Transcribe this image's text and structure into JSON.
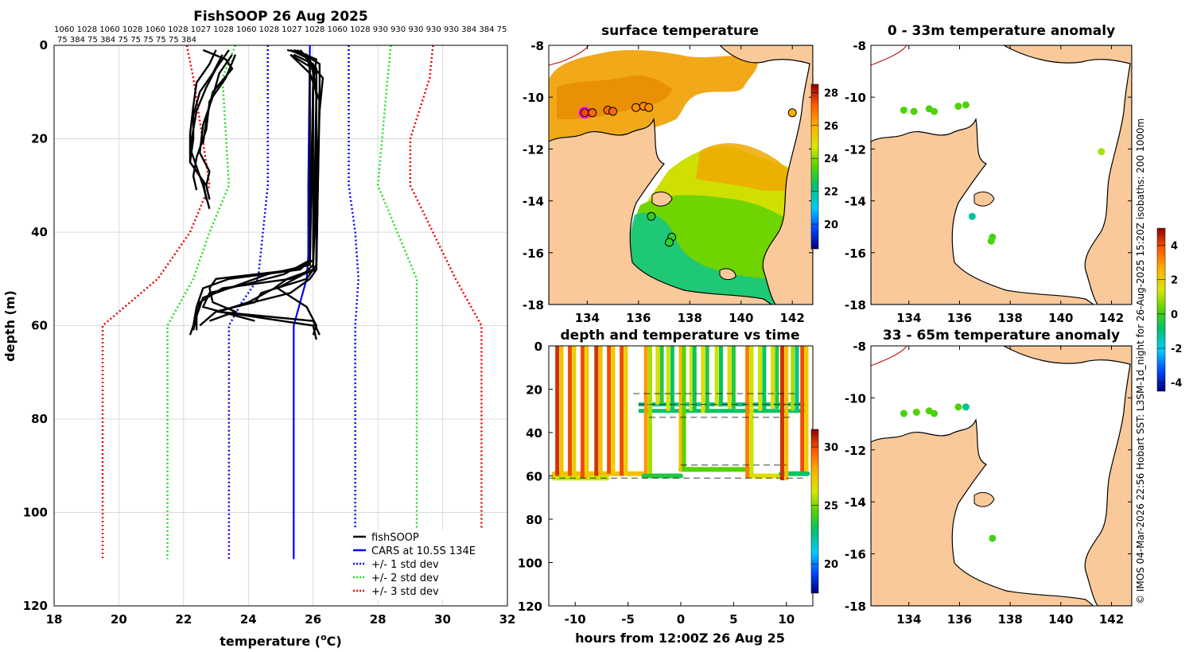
{
  "colors": {
    "land": "#f9c99a",
    "black": "#000000",
    "cars": "#0000ff",
    "std1": "#0000ff",
    "std2": "#22dd22",
    "std3": "#ee0000",
    "grid": "#cccccc"
  },
  "chart_data": [
    {
      "id": "profile",
      "type": "line",
      "title": "FishSOOP 26 Aug 2025",
      "subtitle_lines": [
        "1060 1028 1060 1028 1060 1028 1027 1028 1060 1028 1027 1028 1060 1028 930 930 930 930 930 384 384 75",
        "75 384 75 384 75 75 75 75 75 384"
      ],
      "xlabel": "temperature (",
      "xlabel_sup": "o",
      "xlabel_end": "C)",
      "ylabel": "depth (m)",
      "xlim": [
        18,
        32
      ],
      "ylim": [
        120,
        0
      ],
      "xticks": [
        18,
        20,
        22,
        24,
        26,
        28,
        30,
        32
      ],
      "yticks": [
        0,
        20,
        40,
        60,
        80,
        100,
        120
      ],
      "grid": true,
      "legend_position": "bottom-right",
      "legend": [
        {
          "label": "fishSOOP",
          "style": "solid-black"
        },
        {
          "label": "CARS at 10.5S 134E",
          "style": "solid-blue"
        },
        {
          "label": "+/- 1 std dev",
          "style": "dotted-blue"
        },
        {
          "label": "+/- 2 std dev",
          "style": "dotted-green"
        },
        {
          "label": "+/- 3 std dev",
          "style": "dotted-red"
        }
      ],
      "series": [
        {
          "name": "CARS at 10.5S 134E",
          "depth": [
            0,
            30,
            45,
            50,
            55,
            60,
            110
          ],
          "temp": [
            25.9,
            25.85,
            25.85,
            25.8,
            25.6,
            25.4,
            25.4
          ]
        },
        {
          "name": "-1 std dev",
          "depth": [
            0,
            30,
            50,
            55,
            60,
            110
          ],
          "temp": [
            24.6,
            24.6,
            24.3,
            23.8,
            23.4,
            23.4
          ]
        },
        {
          "name": "+1 std dev",
          "depth": [
            0,
            30,
            40,
            50,
            60,
            110
          ],
          "temp": [
            27.1,
            27.1,
            27.3,
            27.4,
            27.3,
            27.3
          ]
        },
        {
          "name": "-2 std dev",
          "depth": [
            0,
            7,
            30,
            40,
            50,
            60,
            110
          ],
          "temp": [
            23.6,
            23.2,
            23.4,
            22.8,
            22.3,
            21.5,
            21.5
          ]
        },
        {
          "name": "+2 std dev",
          "depth": [
            0,
            7,
            30,
            40,
            50,
            60,
            110
          ],
          "temp": [
            28.4,
            28.3,
            28.0,
            28.6,
            29.2,
            29.2,
            29.2
          ]
        },
        {
          "name": "-3 std dev",
          "depth": [
            0,
            7,
            30,
            40,
            50,
            60,
            110
          ],
          "temp": [
            22.1,
            22.3,
            22.8,
            22.2,
            21.2,
            19.5,
            19.5
          ]
        },
        {
          "name": "+3 std dev",
          "depth": [
            0,
            7,
            20,
            30,
            40,
            50,
            60,
            110
          ],
          "temp": [
            29.7,
            29.6,
            29.0,
            29.0,
            29.7,
            30.4,
            31.2,
            31.2
          ]
        }
      ],
      "fishsoop_profiles": [
        {
          "depth": [
            2,
            6,
            10,
            15,
            20,
            25,
            28,
            30,
            33
          ],
          "temp": [
            23.2,
            22.9,
            22.5,
            22.3,
            22.3,
            22.2,
            22.5,
            22.7,
            22.8
          ]
        },
        {
          "depth": [
            1,
            5,
            9,
            14,
            22,
            26,
            30,
            35
          ],
          "temp": [
            23.4,
            23.0,
            22.7,
            22.4,
            22.2,
            22.4,
            22.6,
            22.8
          ]
        },
        {
          "depth": [
            2,
            7,
            12,
            18,
            24,
            28,
            31
          ],
          "temp": [
            23.6,
            23.3,
            22.8,
            22.7,
            22.4,
            22.3,
            22.4
          ]
        },
        {
          "depth": [
            1,
            4,
            8,
            13,
            19,
            25,
            29,
            33
          ],
          "temp": [
            23.0,
            22.8,
            22.4,
            22.3,
            22.2,
            22.2,
            22.6,
            22.7
          ]
        },
        {
          "depth": [
            2,
            6,
            11,
            17,
            23,
            27,
            30
          ],
          "temp": [
            23.5,
            23.1,
            22.9,
            22.6,
            22.5,
            22.8,
            22.7
          ]
        },
        {
          "depth": [
            1,
            3,
            5,
            10,
            16,
            21
          ],
          "temp": [
            22.6,
            23.3,
            23.5,
            22.9,
            22.7,
            22.6
          ]
        },
        {
          "depth": [
            1,
            2,
            5,
            46,
            48,
            50,
            52,
            56,
            60,
            62
          ],
          "temp": [
            25.2,
            25.8,
            25.9,
            25.9,
            25.6,
            23.4,
            22.6,
            22.4,
            22.3,
            22.2
          ]
        },
        {
          "depth": [
            1,
            3,
            6,
            46,
            48,
            50,
            52,
            55,
            57,
            59
          ],
          "temp": [
            25.3,
            25.9,
            26.0,
            26.0,
            25.5,
            23.0,
            22.8,
            22.9,
            23.6,
            22.8
          ]
        },
        {
          "depth": [
            2,
            4,
            8,
            47,
            49,
            51,
            54,
            56,
            58,
            61
          ],
          "temp": [
            25.4,
            26.0,
            26.0,
            25.9,
            24.6,
            23.8,
            22.6,
            22.5,
            22.4,
            22.3
          ]
        },
        {
          "depth": [
            1,
            5,
            10,
            48,
            50,
            52,
            55,
            57,
            60,
            63
          ],
          "temp": [
            25.6,
            26.1,
            26.1,
            26.0,
            25.2,
            24.8,
            24.0,
            23.1,
            26.0,
            26.1
          ]
        },
        {
          "depth": [
            2,
            6,
            12,
            47,
            50,
            53,
            55,
            57,
            59,
            62
          ],
          "temp": [
            25.3,
            25.9,
            26.2,
            26.1,
            25.8,
            24.4,
            24.2,
            23.0,
            26.0,
            26.2
          ]
        },
        {
          "depth": [
            1,
            4,
            9,
            48,
            50,
            52,
            55,
            58,
            61
          ],
          "temp": [
            25.5,
            26.2,
            26.2,
            26.1,
            25.3,
            23.2,
            22.5,
            22.4,
            22.4
          ]
        },
        {
          "depth": [
            2,
            7,
            14,
            47,
            49,
            52,
            56,
            60,
            62
          ],
          "temp": [
            25.7,
            26.3,
            26.2,
            26.0,
            25.7,
            24.9,
            25.8,
            26.1,
            26.0
          ]
        },
        {
          "depth": [
            1,
            3,
            8,
            46,
            49,
            51,
            53,
            56,
            59
          ],
          "temp": [
            25.4,
            26.1,
            26.0,
            25.9,
            25.1,
            24.0,
            22.8,
            22.6,
            24.2
          ]
        },
        {
          "depth": [
            2,
            5,
            11,
            48,
            50,
            53,
            57,
            60
          ],
          "temp": [
            25.3,
            26.0,
            26.1,
            26.1,
            25.9,
            25.3,
            23.0,
            22.5
          ]
        }
      ]
    },
    {
      "id": "sst",
      "type": "heatmap",
      "title": "surface temperature",
      "xlim": [
        132.5,
        142.8
      ],
      "ylim": [
        -18,
        -8
      ],
      "xticks": [
        134,
        136,
        138,
        140,
        142
      ],
      "yticks": [
        -8,
        -10,
        -12,
        -14,
        -16,
        -18
      ],
      "colorbar_range": [
        18.5,
        28.5
      ],
      "colorbar_ticks": [
        20,
        22,
        24,
        26,
        28
      ],
      "circles": [
        {
          "lon": 133.9,
          "lat": -10.6,
          "temp": 27.5,
          "highlight": true
        },
        {
          "lon": 134.2,
          "lat": -10.6,
          "temp": 27.0
        },
        {
          "lon": 134.8,
          "lat": -10.5,
          "temp": 27.0
        },
        {
          "lon": 135.0,
          "lat": -10.55,
          "temp": 27.0
        },
        {
          "lon": 135.9,
          "lat": -10.4,
          "temp": 26.5
        },
        {
          "lon": 136.2,
          "lat": -10.35,
          "temp": 26.5
        },
        {
          "lon": 136.4,
          "lat": -10.4,
          "temp": 26.5
        },
        {
          "lon": 136.5,
          "lat": -14.6,
          "temp": 23.0
        },
        {
          "lon": 137.3,
          "lat": -15.4,
          "temp": 23.0
        },
        {
          "lon": 137.2,
          "lat": -15.6,
          "temp": 23.0
        },
        {
          "lon": 142.0,
          "lat": -10.6,
          "temp": 26.0
        }
      ]
    },
    {
      "id": "timeseries",
      "type": "scatter",
      "title": "depth and temperature vs time",
      "xlabel": "hours from 12:00Z 26 Aug 25",
      "xlim": [
        -12.5,
        12.5
      ],
      "ylim": [
        120,
        0
      ],
      "xticks": [
        -10,
        -5,
        0,
        5,
        10
      ],
      "yticks": [
        0,
        20,
        40,
        60,
        80,
        100,
        120
      ],
      "colorbar_range": [
        17.5,
        31.5
      ],
      "colorbar_ticks": [
        20,
        25,
        30
      ],
      "profiles": [
        {
          "t0": -11.7,
          "t1": -11.3,
          "bottom": 60,
          "temp": 27.5
        },
        {
          "t0": -10.5,
          "t1": -10.1,
          "bottom": 60,
          "temp": 27.0
        },
        {
          "t0": -9.3,
          "t1": -8.9,
          "bottom": 61,
          "temp": 27.0
        },
        {
          "t0": -8.0,
          "t1": -7.6,
          "bottom": 60,
          "temp": 27.5
        },
        {
          "t0": -6.8,
          "t1": -6.4,
          "bottom": 59,
          "temp": 27.0
        },
        {
          "t0": -5.6,
          "t1": -5.2,
          "bottom": 60,
          "temp": 27.0
        },
        {
          "t0": -3.3,
          "t1": -2.9,
          "bottom": 59,
          "temp": 25.5
        },
        {
          "t0": -2.2,
          "t1": -1.8,
          "bottom": 27,
          "temp": 23.5
        },
        {
          "t0": -1.2,
          "t1": -0.8,
          "bottom": 30,
          "temp": 23.0
        },
        {
          "t0": 0.0,
          "t1": 0.3,
          "bottom": 58,
          "temp": 24.5
        },
        {
          "t0": 1.0,
          "t1": 1.3,
          "bottom": 30,
          "temp": 23.0
        },
        {
          "t0": 2.1,
          "t1": 2.5,
          "bottom": 31,
          "temp": 23.5
        },
        {
          "t0": 3.4,
          "t1": 3.8,
          "bottom": 28,
          "temp": 23.0
        },
        {
          "t0": 4.6,
          "t1": 5.0,
          "bottom": 29,
          "temp": 23.5
        },
        {
          "t0": 6.3,
          "t1": 6.7,
          "bottom": 61,
          "temp": 26.0
        },
        {
          "t0": 7.5,
          "t1": 7.9,
          "bottom": 30,
          "temp": 23.0
        },
        {
          "t0": 8.7,
          "t1": 9.1,
          "bottom": 29,
          "temp": 23.5
        },
        {
          "t0": 9.6,
          "t1": 10.0,
          "bottom": 62,
          "temp": 27.5
        },
        {
          "t0": 10.6,
          "t1": 11.0,
          "bottom": 30,
          "temp": 22.5
        },
        {
          "t0": 11.5,
          "t1": 11.9,
          "bottom": 58,
          "temp": 27.0
        }
      ],
      "bottom_track": [
        {
          "t0": -12.0,
          "t1": -3.5,
          "depth": 59,
          "temp": 27.5
        },
        {
          "t0": -12.0,
          "t1": -7.0,
          "depth": 61,
          "temp": 26.0
        },
        {
          "t0": -3.5,
          "t1": 0.0,
          "depth": 60,
          "temp": 23.5
        },
        {
          "t0": 0.0,
          "t1": 6.5,
          "depth": 57,
          "temp": 24.5
        },
        {
          "t0": 6.5,
          "t1": 9.5,
          "depth": 60,
          "temp": 26.5
        },
        {
          "t0": 9.5,
          "t1": 12.0,
          "depth": 59,
          "temp": 23.0
        }
      ],
      "mid_track": [
        {
          "t0": -4.0,
          "t1": 12.0,
          "depth": 27,
          "temp": 22.5
        },
        {
          "t0": -4.0,
          "t1": 12.0,
          "depth": 30,
          "temp": 23.0
        }
      ],
      "dashed_refs": [
        {
          "t0": -4.5,
          "t1": 11.0,
          "depth": 22
        },
        {
          "t0": -4.0,
          "t1": 11.5,
          "depth": 27
        },
        {
          "t0": -3.0,
          "t1": 10.5,
          "depth": 33
        },
        {
          "t0": 0.0,
          "t1": 10.0,
          "depth": 55
        },
        {
          "t0": -12.5,
          "t1": 12.0,
          "depth": 61
        }
      ]
    },
    {
      "id": "anom0",
      "type": "scatter",
      "title": "0 - 33m temperature anomaly",
      "xlim": [
        132.5,
        142.8
      ],
      "ylim": [
        -18,
        -8
      ],
      "xticks": [
        134,
        136,
        138,
        140,
        142
      ],
      "yticks": [
        -8,
        -10,
        -12,
        -14,
        -16,
        -18
      ],
      "points": [
        {
          "lon": 133.8,
          "lat": -10.5,
          "anomaly": 0.2
        },
        {
          "lon": 134.2,
          "lat": -10.55,
          "anomaly": 0.2
        },
        {
          "lon": 134.8,
          "lat": -10.45,
          "anomaly": 0.1
        },
        {
          "lon": 135.0,
          "lat": -10.55,
          "anomaly": 0.2
        },
        {
          "lon": 135.95,
          "lat": -10.35,
          "anomaly": 0.2
        },
        {
          "lon": 136.25,
          "lat": -10.3,
          "anomaly": 0.1
        },
        {
          "lon": 141.6,
          "lat": -12.1,
          "anomaly": 1.0
        },
        {
          "lon": 136.5,
          "lat": -14.6,
          "anomaly": -1.3
        },
        {
          "lon": 137.3,
          "lat": -15.4,
          "anomaly": 0.0
        },
        {
          "lon": 137.25,
          "lat": -15.55,
          "anomaly": 0.1
        }
      ]
    },
    {
      "id": "anom33",
      "type": "scatter",
      "title": "33 - 65m temperature anomaly",
      "xlim": [
        132.5,
        142.8
      ],
      "ylim": [
        -18,
        -8
      ],
      "xticks": [
        134,
        136,
        138,
        140,
        142
      ],
      "yticks": [
        -8,
        -10,
        -12,
        -14,
        -16,
        -18
      ],
      "colorbar_range": [
        -4.5,
        5
      ],
      "colorbar_ticks": [
        4,
        2,
        0,
        -2,
        -4
      ],
      "points": [
        {
          "lon": 133.8,
          "lat": -10.6,
          "anomaly": 0.1
        },
        {
          "lon": 134.3,
          "lat": -10.55,
          "anomaly": 0.2
        },
        {
          "lon": 134.8,
          "lat": -10.5,
          "anomaly": 0.2
        },
        {
          "lon": 135.0,
          "lat": -10.6,
          "anomaly": 0.1
        },
        {
          "lon": 135.95,
          "lat": -10.35,
          "anomaly": 0.2
        },
        {
          "lon": 136.25,
          "lat": -10.35,
          "anomaly": -1.2
        },
        {
          "lon": 137.3,
          "lat": -15.4,
          "anomaly": 0.0
        }
      ]
    }
  ],
  "credit": "© IMOS 04-Mar-2026 22:56 Hobart SST: L3SM-1d_night for 26-Aug-2025 15:20Z isobaths: 200  1000m"
}
